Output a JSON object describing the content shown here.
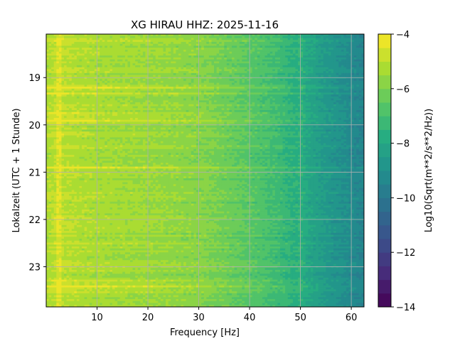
{
  "chart_data": {
    "type": "heatmap",
    "title": "XG HIRAU  HHZ: 2025-11-16",
    "xlabel": "Frequency [Hz]",
    "ylabel": "Lokalzeit (UTC + 1 Stunde)",
    "xlim": [
      0,
      62.5
    ],
    "ylim": [
      18.08,
      23.85
    ],
    "y_inverted": true,
    "grid": true,
    "colormap": "viridis",
    "x_ticks": [
      10,
      20,
      30,
      40,
      50,
      60
    ],
    "x_tick_labels": [
      "10",
      "20",
      "30",
      "40",
      "50",
      "60"
    ],
    "y_ticks": [
      19,
      20,
      21,
      22,
      23
    ],
    "y_tick_labels": [
      "19",
      "20",
      "21",
      "22",
      "23"
    ],
    "colorbar": {
      "label": "Log10(Sqrt(m**2/s**2/Hz))",
      "range": [
        -14,
        -4
      ],
      "levels": 20,
      "ticks": [
        -14,
        -12,
        -10,
        -8,
        -6,
        -4
      ],
      "tick_labels": [
        "−14",
        "−12",
        "−10",
        "−8",
        "−6",
        "−4"
      ]
    },
    "x_rolloff": [
      [
        0,
        -5.2
      ],
      [
        2.5,
        -5.0
      ],
      [
        10,
        -5.3
      ],
      [
        20,
        -5.5
      ],
      [
        30,
        -5.8
      ],
      [
        35,
        -6.2
      ],
      [
        40,
        -6.6
      ],
      [
        45,
        -7.1
      ],
      [
        50,
        -7.8
      ],
      [
        55,
        -8.6
      ],
      [
        60,
        -9.2
      ],
      [
        62.5,
        -9.5
      ]
    ],
    "high_bands": [
      {
        "time": 18.2,
        "strength": 0.35
      },
      {
        "time": 19.22,
        "strength": 0.9
      },
      {
        "time": 19.35,
        "strength": 0.7
      },
      {
        "time": 19.75,
        "strength": 0.6
      },
      {
        "time": 19.9,
        "strength": 1.2
      },
      {
        "time": 20.2,
        "strength": 0.4
      },
      {
        "time": 20.5,
        "strength": 0.35
      },
      {
        "time": 20.9,
        "strength": 0.9
      },
      {
        "time": 21.5,
        "strength": 0.35
      },
      {
        "time": 22.05,
        "strength": 0.35
      },
      {
        "time": 22.5,
        "strength": 0.3
      },
      {
        "time": 23.3,
        "strength": 0.6
      },
      {
        "time": 23.42,
        "strength": 1.2
      },
      {
        "time": 23.55,
        "strength": 0.4
      }
    ],
    "peak_lines": [
      {
        "freq": 2.5,
        "strength": 0.6
      },
      {
        "freq": 50,
        "strength": 0.3
      }
    ]
  }
}
